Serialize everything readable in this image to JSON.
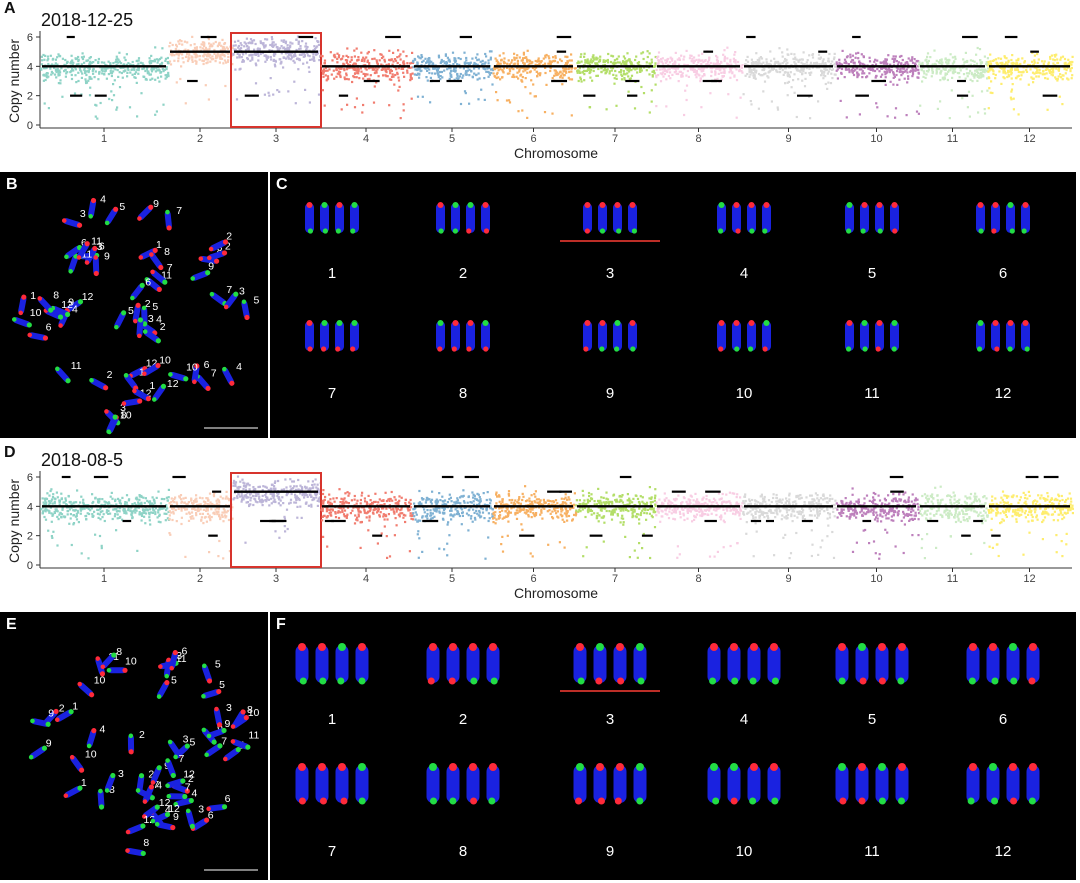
{
  "figure": {
    "panels": {
      "A": {
        "letter": "A",
        "date": "2018-12-25"
      },
      "B": {
        "letter": "B"
      },
      "C": {
        "letter": "C"
      },
      "D": {
        "letter": "D",
        "date": "2018-08-5"
      },
      "E": {
        "letter": "E"
      },
      "F": {
        "letter": "F"
      }
    },
    "colors": {
      "chromosomes": [
        "#8ed3c6",
        "#f9cdb7",
        "#bcb5d8",
        "#f17c6f",
        "#7fb1d3",
        "#f7b062",
        "#b3de68",
        "#f8cde3",
        "#d9d9d9",
        "#bd80bc",
        "#ccebc5",
        "#feed6e"
      ],
      "highlight": "#d7342d",
      "segment": "#000000",
      "fish_dapi": "#1a22e0",
      "fish_red": "#ff2a3a",
      "fish_green": "#22dd44"
    }
  },
  "chart_data": [
    {
      "type": "scatter",
      "title": "2018-12-25",
      "xlabel": "Chromosome",
      "ylabel": "Copy number",
      "ylim": [
        0,
        6
      ],
      "yticks": [
        "0",
        "2",
        "4",
        "6"
      ],
      "categories": [
        "1",
        "2",
        "3",
        "4",
        "5",
        "6",
        "7",
        "8",
        "9",
        "10",
        "11",
        "12"
      ],
      "highlighted_chromosome": "3",
      "baseline_copy_number": [
        4,
        5,
        5,
        4,
        4,
        4,
        4,
        4,
        4,
        4,
        4,
        4
      ]
    },
    {
      "type": "scatter",
      "title": "2018-08-5",
      "xlabel": "Chromosome",
      "ylabel": "Copy number",
      "ylim": [
        0,
        6
      ],
      "yticks": [
        "0",
        "2",
        "4",
        "6"
      ],
      "categories": [
        "1",
        "2",
        "3",
        "4",
        "5",
        "6",
        "7",
        "8",
        "9",
        "10",
        "11",
        "12"
      ],
      "highlighted_chromosome": "3",
      "baseline_copy_number": [
        4,
        4,
        5,
        4,
        4,
        4,
        4,
        4,
        4,
        4,
        4,
        4
      ]
    }
  ],
  "karyotype_C": {
    "labels": [
      "1",
      "2",
      "3",
      "4",
      "5",
      "6",
      "7",
      "8",
      "9",
      "10",
      "11",
      "12"
    ],
    "underlined": "3"
  },
  "karyotype_F": {
    "labels": [
      "1",
      "2",
      "3",
      "4",
      "5",
      "6",
      "7",
      "8",
      "9",
      "10",
      "11",
      "12"
    ],
    "underlined": "3"
  },
  "spread_B_labels": [
    "12",
    "11",
    "1",
    "3",
    "7",
    "6",
    "7",
    "6",
    "3",
    "10",
    "12",
    "4",
    "8",
    "12",
    "12",
    "2",
    "1",
    "7",
    "6",
    "10",
    "11",
    "1",
    "8",
    "5",
    "2",
    "9",
    "2",
    "4",
    "9",
    "12",
    "9",
    "6",
    "7",
    "4",
    "10",
    "3",
    "5",
    "5",
    "10",
    "11",
    "3",
    "3",
    "8",
    "11",
    "1",
    "2",
    "5",
    "2",
    "6",
    "9",
    "8",
    "4"
  ],
  "spread_E_labels": [
    "2",
    "11",
    "5",
    "6",
    "8",
    "9",
    "2",
    "7",
    "3",
    "4",
    "6",
    "8",
    "4",
    "11",
    "8",
    "10",
    "9",
    "3",
    "2",
    "1",
    "6",
    "9",
    "10",
    "4",
    "1",
    "3",
    "5",
    "3",
    "1",
    "4",
    "12",
    "5",
    "9",
    "12",
    "2",
    "8",
    "12",
    "10",
    "7",
    "12",
    "11",
    "6",
    "10",
    "9",
    "3",
    "7",
    "7",
    "5"
  ]
}
